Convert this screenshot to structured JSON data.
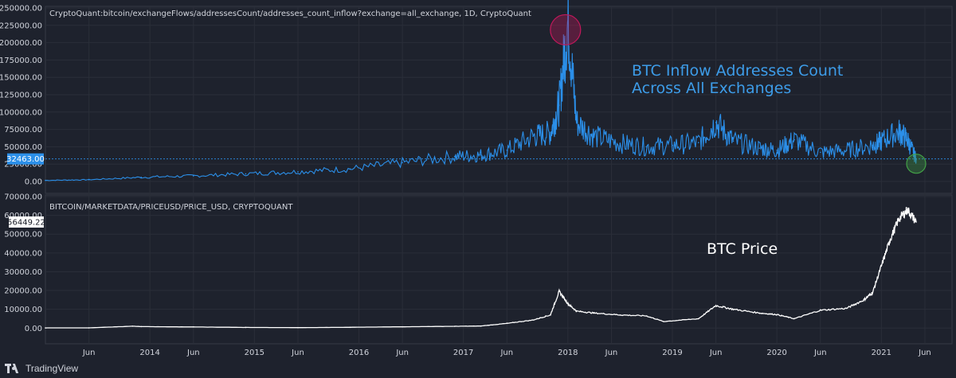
{
  "brand": {
    "name": "TradingView"
  },
  "colors": {
    "background": "#1e222d",
    "grid": "#2a2e39",
    "inflow": "#2b8fe9",
    "price": "#ffffff",
    "peak_marker": "#c2185b",
    "low_marker": "#43a047"
  },
  "annotations": {
    "inflow_line1": "BTC Inflow Addresses Count",
    "inflow_line2": "Across All Exchanges",
    "price": "BTC Price"
  },
  "chart_data": [
    {
      "type": "area",
      "title": "CryptoQuant:bitcoin/exchangeFlows/addressesCount/addresses_count_inflow?exchange=all_exchange, 1D, CryptoQuant",
      "xlabel": "",
      "ylabel": "",
      "ylim": [
        0,
        250000
      ],
      "yticks": [
        "250000.00",
        "225000.00",
        "200000.00",
        "175000.00",
        "150000.00",
        "125000.00",
        "100000.00",
        "75000.00",
        "50000.00",
        "25000.00",
        "0.00"
      ],
      "last_value_label": "32463.00",
      "last_value": 32463,
      "grid": true,
      "peak_marker": "circle around 2018 peak",
      "low_marker": "circle around 2021 low",
      "x": [
        "2013-01",
        "2013-06",
        "2013-12",
        "2014-06",
        "2014-12",
        "2015-06",
        "2015-12",
        "2016-06",
        "2016-12",
        "2017-03",
        "2017-06",
        "2017-09",
        "2017-11",
        "2017-12",
        "2018-01",
        "2018-02",
        "2018-04",
        "2018-07",
        "2018-10",
        "2019-01",
        "2019-04",
        "2019-06",
        "2019-08",
        "2019-11",
        "2020-01",
        "2020-03",
        "2020-06",
        "2020-09",
        "2020-12",
        "2021-01",
        "2021-03",
        "2021-04",
        "2021-05"
      ],
      "values": [
        1500,
        2500,
        6000,
        8000,
        11000,
        14000,
        18000,
        27000,
        36000,
        38000,
        45000,
        65000,
        70000,
        110000,
        230000,
        85000,
        65000,
        55000,
        50000,
        52000,
        56000,
        85000,
        58000,
        48000,
        45000,
        60000,
        42000,
        45000,
        52000,
        58000,
        72000,
        60000,
        32463
      ]
    },
    {
      "type": "line",
      "title": "BITCOIN/MARKETDATA/PRICEUSD/PRICE_USD, CRYPTOQUANT",
      "xlabel": "",
      "ylabel": "",
      "ylim": [
        -2000,
        70000
      ],
      "yticks": [
        "70000.00",
        "60000.00",
        "50000.00",
        "40000.00",
        "30000.00",
        "20000.00",
        "10000.00",
        "0.00"
      ],
      "last_value_label": "56449.22",
      "last_value": 56449.22,
      "grid": true,
      "x": [
        "2013-01",
        "2013-06",
        "2013-11",
        "2013-12",
        "2014-06",
        "2014-12",
        "2015-06",
        "2015-12",
        "2016-06",
        "2016-12",
        "2017-03",
        "2017-06",
        "2017-09",
        "2017-11",
        "2017-12",
        "2018-01",
        "2018-02",
        "2018-04",
        "2018-07",
        "2018-10",
        "2018-12",
        "2019-04",
        "2019-06",
        "2019-08",
        "2019-11",
        "2020-01",
        "2020-03",
        "2020-06",
        "2020-09",
        "2020-11",
        "2020-12",
        "2021-01",
        "2021-02",
        "2021-03",
        "2021-04",
        "2021-05"
      ],
      "values": [
        100,
        120,
        1000,
        800,
        600,
        350,
        250,
        430,
        700,
        950,
        1100,
        2500,
        4300,
        7000,
        19500,
        13000,
        9000,
        8000,
        7000,
        6500,
        3500,
        5000,
        12000,
        10000,
        8000,
        7200,
        5000,
        9500,
        10500,
        15000,
        19000,
        33000,
        47000,
        58000,
        63000,
        56449.22
      ]
    }
  ],
  "x_axis": {
    "labels": [
      "Jun",
      "2014",
      "Jun",
      "2015",
      "Jun",
      "2016",
      "Jun",
      "2017",
      "Jun",
      "2018",
      "Jun",
      "2019",
      "Jun",
      "2020",
      "Jun",
      "2021",
      "Jun"
    ],
    "positions": [
      "2013-06",
      "2014-01",
      "2014-06",
      "2015-01",
      "2015-06",
      "2016-01",
      "2016-06",
      "2017-01",
      "2017-06",
      "2018-01",
      "2018-06",
      "2019-01",
      "2019-06",
      "2020-01",
      "2020-06",
      "2021-01",
      "2021-06"
    ]
  }
}
